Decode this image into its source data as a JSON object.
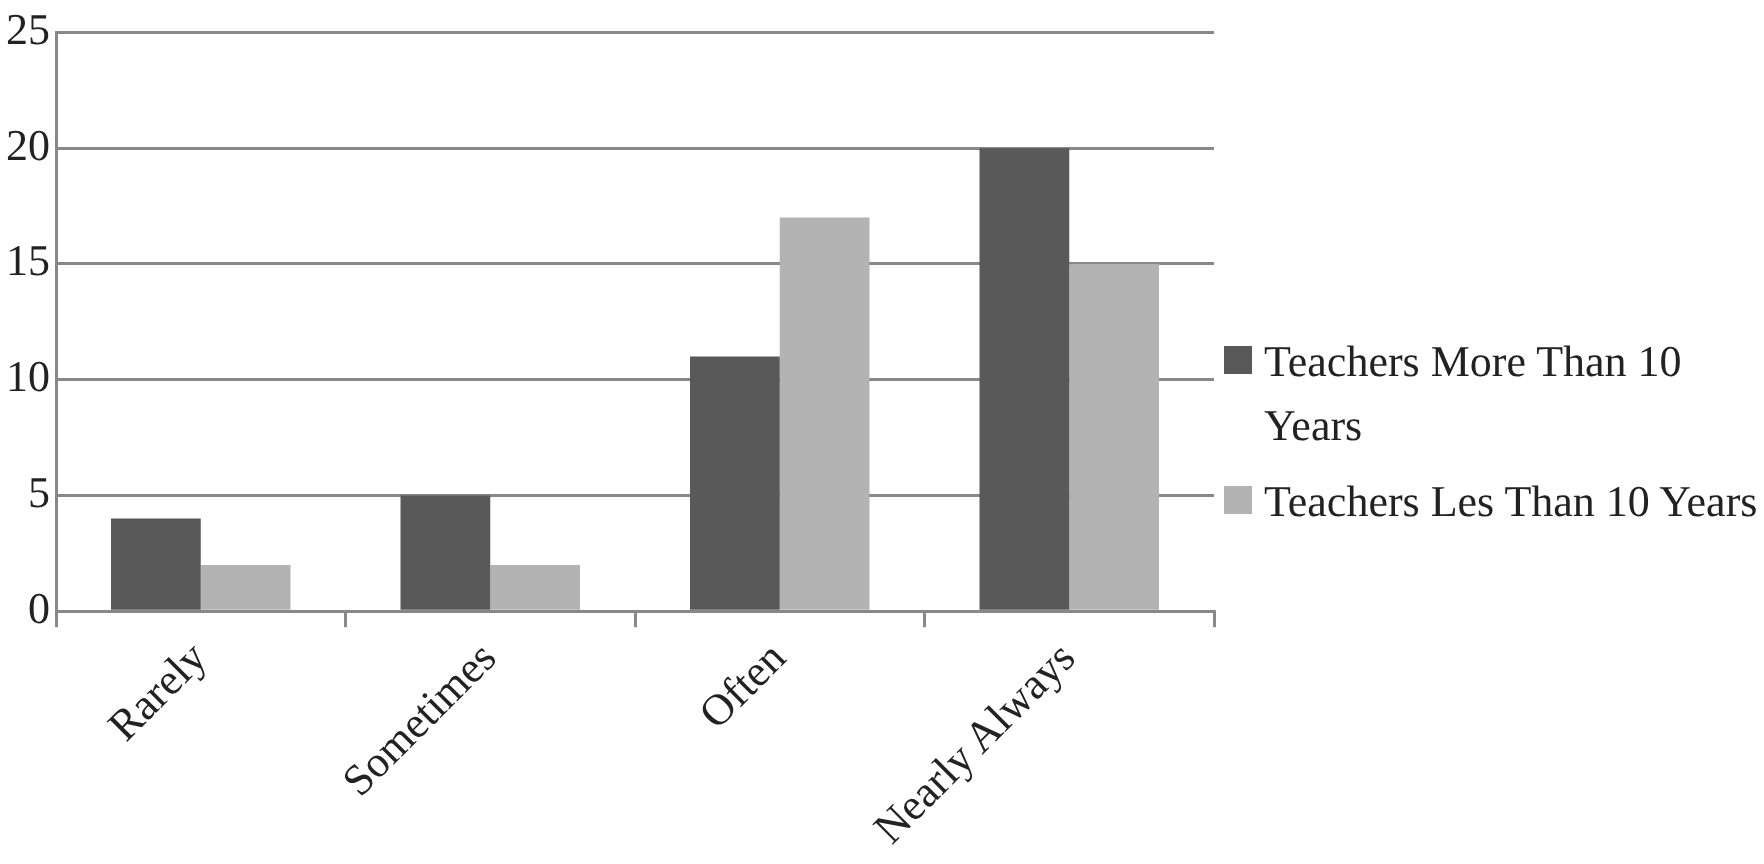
{
  "chart_data": {
    "type": "bar",
    "categories": [
      "Rarely",
      "Sometimes",
      "Often",
      "Nearly Always"
    ],
    "series": [
      {
        "name": "Teachers More Than 10 Years",
        "color": "#595959",
        "values": [
          4,
          5,
          11,
          20
        ]
      },
      {
        "name": "Teachers Les Than 10 Years",
        "color": "#b3b3b3",
        "values": [
          2,
          2,
          17,
          15
        ]
      }
    ],
    "ylim": [
      0,
      25
    ],
    "yticks": [
      0,
      5,
      10,
      15,
      20,
      25
    ],
    "grid": "y",
    "legend": "right"
  }
}
